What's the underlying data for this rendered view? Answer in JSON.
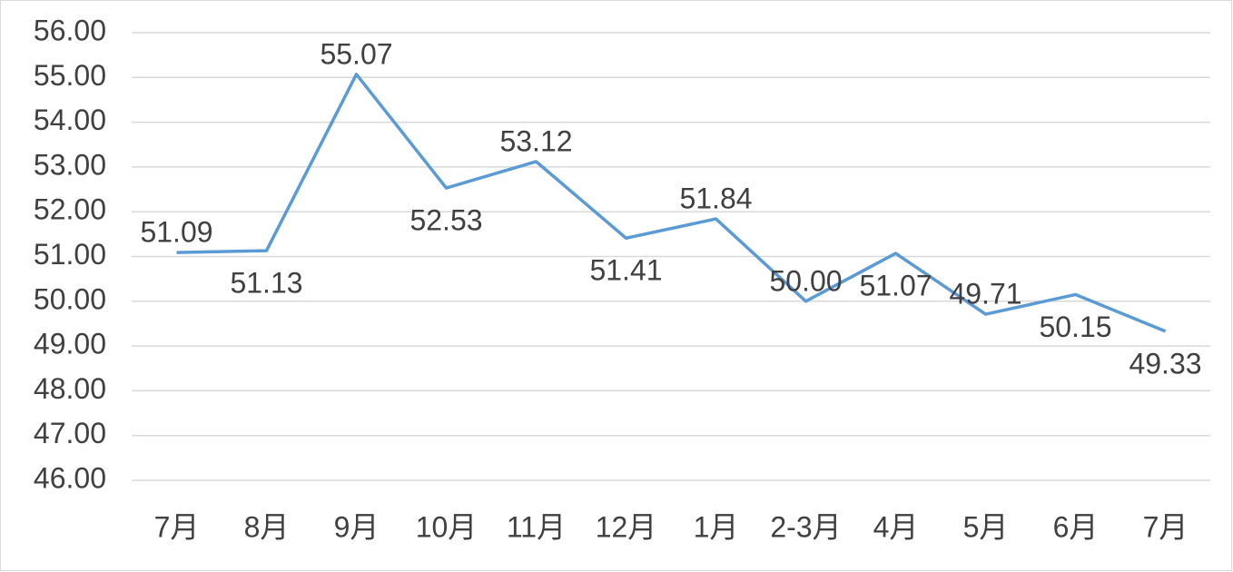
{
  "chart_data": {
    "type": "line",
    "categories": [
      "7月",
      "8月",
      "9月",
      "10月",
      "11月",
      "12月",
      "1月",
      "2-3月",
      "4月",
      "5月",
      "6月",
      "7月"
    ],
    "series": [
      {
        "name": null,
        "color": "#5b9bd5",
        "values": [
          51.09,
          51.13,
          55.07,
          52.53,
          53.12,
          51.41,
          51.84,
          50.0,
          51.07,
          49.71,
          50.15,
          49.33
        ],
        "value_labels": [
          "51.09",
          "51.13",
          "55.07",
          "52.53",
          "53.12",
          "51.41",
          "51.84",
          "50.00",
          "51.07",
          "49.71",
          "50.15",
          "49.33"
        ]
      }
    ],
    "ylim": [
      46,
      56
    ],
    "yticks": [
      {
        "value": 46,
        "label": "46.00"
      },
      {
        "value": 47,
        "label": "47.00"
      },
      {
        "value": 48,
        "label": "48.00"
      },
      {
        "value": 49,
        "label": "49.00"
      },
      {
        "value": 50,
        "label": "50.00"
      },
      {
        "value": 51,
        "label": "51.00"
      },
      {
        "value": 52,
        "label": "52.00"
      },
      {
        "value": 53,
        "label": "53.00"
      },
      {
        "value": 54,
        "label": "54.00"
      },
      {
        "value": 55,
        "label": "55.00"
      },
      {
        "value": 56,
        "label": "56.00"
      }
    ],
    "grid": true
  }
}
